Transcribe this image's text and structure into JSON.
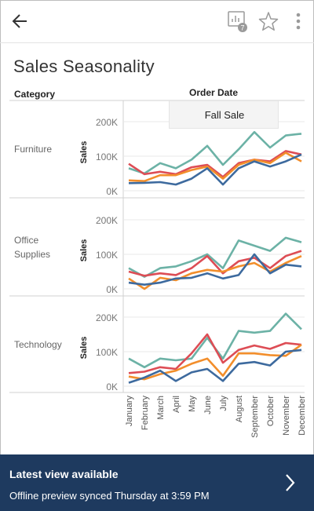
{
  "header": {
    "badge_count": "7"
  },
  "title": "Sales Seasonality",
  "column_headers": {
    "category": "Category",
    "order_date": "Order Date"
  },
  "tooltip": "Fall Sale",
  "banner": {
    "title": "Latest view available",
    "subtitle": "Offline preview synced Thursday at 3:59 PM"
  },
  "colors": {
    "teal": "#6cb2a6",
    "red": "#dd4d55",
    "orange": "#f28e2b",
    "blue": "#3d6a9e",
    "banner": "#1e3a5f"
  },
  "chart_data": {
    "type": "line",
    "x": [
      "January",
      "February",
      "March",
      "April",
      "May",
      "June",
      "July",
      "August",
      "September",
      "October",
      "November",
      "December"
    ],
    "y_axis_label": "Sales",
    "y_ticks": [
      "0K",
      "100K",
      "200K"
    ],
    "ylim": [
      0,
      230000
    ],
    "panels": [
      {
        "category": "Furniture",
        "series": [
          {
            "color": "#6cb2a6",
            "values": [
              65000,
              50000,
              80000,
              65000,
              90000,
              130000,
              75000,
              120000,
              170000,
              125000,
              160000,
              165000
            ]
          },
          {
            "color": "#dd4d55",
            "values": [
              78000,
              48000,
              55000,
              48000,
              68000,
              75000,
              40000,
              80000,
              90000,
              85000,
              115000,
              105000
            ]
          },
          {
            "color": "#f28e2b",
            "values": [
              30000,
              28000,
              45000,
              45000,
              60000,
              70000,
              35000,
              75000,
              90000,
              80000,
              110000,
              85000
            ]
          },
          {
            "color": "#3d6a9e",
            "values": [
              22000,
              23000,
              25000,
              18000,
              35000,
              65000,
              18000,
              65000,
              85000,
              70000,
              85000,
              105000
            ]
          }
        ]
      },
      {
        "category": "Office\nSupplies",
        "series": [
          {
            "color": "#6cb2a6",
            "values": [
              60000,
              35000,
              60000,
              65000,
              80000,
              100000,
              60000,
              140000,
              125000,
              110000,
              148000,
              135000
            ]
          },
          {
            "color": "#dd4d55",
            "values": [
              50000,
              38000,
              45000,
              40000,
              60000,
              95000,
              45000,
              80000,
              90000,
              60000,
              95000,
              110000
            ]
          },
          {
            "color": "#f28e2b",
            "values": [
              30000,
              0,
              32000,
              25000,
              45000,
              55000,
              50000,
              65000,
              75000,
              50000,
              75000,
              95000
            ]
          },
          {
            "color": "#3d6a9e",
            "values": [
              18000,
              12000,
              18000,
              30000,
              32000,
              45000,
              30000,
              40000,
              100000,
              45000,
              70000,
              65000
            ]
          }
        ]
      },
      {
        "category": "Technology",
        "series": [
          {
            "color": "#6cb2a6",
            "values": [
              80000,
              55000,
              80000,
              75000,
              80000,
              140000,
              80000,
              160000,
              155000,
              160000,
              210000,
              165000
            ]
          },
          {
            "color": "#dd4d55",
            "values": [
              38000,
              42000,
              55000,
              50000,
              95000,
              150000,
              68000,
              105000,
              118000,
              108000,
              125000,
              120000
            ]
          },
          {
            "color": "#f28e2b",
            "values": [
              28000,
              20000,
              35000,
              45000,
              65000,
              80000,
              30000,
              95000,
              95000,
              90000,
              88000,
              120000
            ]
          },
          {
            "color": "#3d6a9e",
            "values": [
              10000,
              25000,
              45000,
              15000,
              40000,
              50000,
              15000,
              65000,
              70000,
              60000,
              100000,
              105000
            ]
          }
        ]
      }
    ]
  }
}
